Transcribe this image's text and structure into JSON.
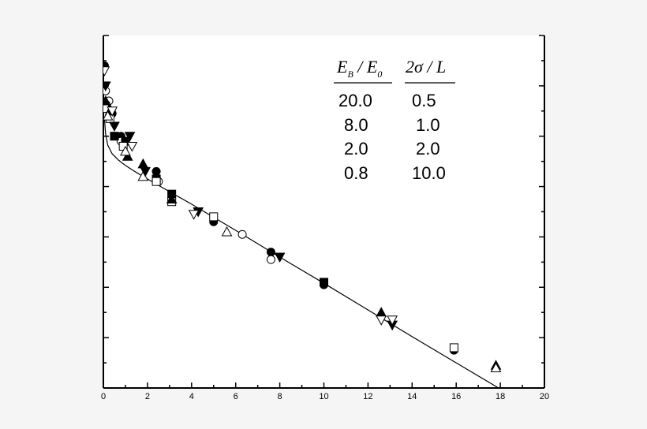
{
  "chart_data": {
    "type": "scatter",
    "title": "",
    "xlabel": "",
    "ylabel": "",
    "xlim": [
      0,
      20
    ],
    "ylim": [
      0,
      7
    ],
    "x_ticks": [
      "0",
      "2",
      "4",
      "6",
      "8",
      "10",
      "12",
      "14",
      "16",
      "18",
      "20"
    ],
    "grid": false,
    "legend": {
      "placement": "top-right",
      "headers": {
        "left": {
          "main1": "E",
          "sub1": "B",
          "sep": " / ",
          "main2": "E",
          "sub2": "0"
        },
        "right": "2σ / L"
      },
      "rows": [
        {
          "left": "20.0",
          "right": "0.5"
        },
        {
          "left": "8.0",
          "right": "1.0"
        },
        {
          "left": "2.0",
          "right": "2.0"
        },
        {
          "left": "0.8",
          "right": "10.0"
        }
      ]
    },
    "series": [
      {
        "marker": "filled-circle",
        "points": [
          [
            0.05,
            6.4
          ],
          [
            0.2,
            5.55
          ],
          [
            0.4,
            5.45
          ],
          [
            0.8,
            5.0
          ],
          [
            2.4,
            4.3
          ],
          [
            5.0,
            3.3
          ],
          [
            7.6,
            2.7
          ],
          [
            10.0,
            2.05
          ],
          [
            15.9,
            0.75
          ]
        ]
      },
      {
        "marker": "open-circle",
        "points": [
          [
            0.1,
            5.9
          ],
          [
            0.25,
            5.7
          ],
          [
            0.8,
            4.9
          ],
          [
            2.5,
            4.1
          ],
          [
            6.3,
            3.05
          ],
          [
            7.6,
            2.55
          ]
        ]
      },
      {
        "marker": "filled-square",
        "points": [
          [
            0.1,
            5.6
          ],
          [
            0.5,
            5.0
          ],
          [
            1.0,
            4.9
          ],
          [
            2.4,
            4.15
          ],
          [
            3.1,
            3.85
          ],
          [
            10.0,
            2.1
          ]
        ]
      },
      {
        "marker": "open-square",
        "points": [
          [
            0.05,
            5.55
          ],
          [
            0.3,
            5.35
          ],
          [
            0.9,
            4.8
          ],
          [
            2.4,
            4.1
          ],
          [
            3.1,
            3.7
          ],
          [
            5.0,
            3.4
          ],
          [
            15.9,
            0.8
          ]
        ]
      },
      {
        "marker": "filled-triangle-up",
        "points": [
          [
            0.1,
            5.7
          ],
          [
            0.3,
            5.5
          ],
          [
            1.1,
            4.6
          ],
          [
            1.8,
            4.45
          ],
          [
            3.1,
            3.75
          ],
          [
            12.6,
            1.5
          ],
          [
            17.8,
            0.45
          ]
        ]
      },
      {
        "marker": "open-triangle-up",
        "points": [
          [
            0.2,
            5.4
          ],
          [
            1.0,
            4.7
          ],
          [
            1.8,
            4.2
          ],
          [
            5.6,
            3.1
          ],
          [
            17.8,
            0.4
          ]
        ]
      },
      {
        "marker": "filled-triangle-down",
        "points": [
          [
            0.1,
            6.0
          ],
          [
            0.5,
            5.2
          ],
          [
            1.2,
            5.0
          ],
          [
            1.9,
            4.3
          ],
          [
            4.3,
            3.5
          ],
          [
            8.0,
            2.6
          ],
          [
            13.1,
            1.25
          ]
        ]
      },
      {
        "marker": "open-triangle-down",
        "points": [
          [
            0.05,
            6.3
          ],
          [
            0.4,
            5.5
          ],
          [
            1.3,
            4.8
          ],
          [
            4.1,
            3.45
          ],
          [
            12.6,
            1.35
          ],
          [
            13.1,
            1.35
          ]
        ]
      }
    ],
    "fit_line": {
      "points": [
        [
          0.05,
          5.35
        ],
        [
          0.1,
          5.05
        ],
        [
          0.2,
          4.82
        ],
        [
          0.4,
          4.65
        ],
        [
          0.7,
          4.52
        ],
        [
          1.0,
          4.42
        ],
        [
          1.5,
          4.28
        ],
        [
          2.0,
          4.15
        ],
        [
          3.0,
          3.9
        ],
        [
          4.0,
          3.65
        ],
        [
          6.0,
          3.13
        ],
        [
          8.0,
          2.6
        ],
        [
          10.0,
          2.08
        ],
        [
          12.0,
          1.55
        ],
        [
          14.0,
          1.02
        ],
        [
          16.0,
          0.5
        ],
        [
          18.0,
          -0.02
        ],
        [
          18.75,
          -0.2
        ]
      ]
    }
  }
}
